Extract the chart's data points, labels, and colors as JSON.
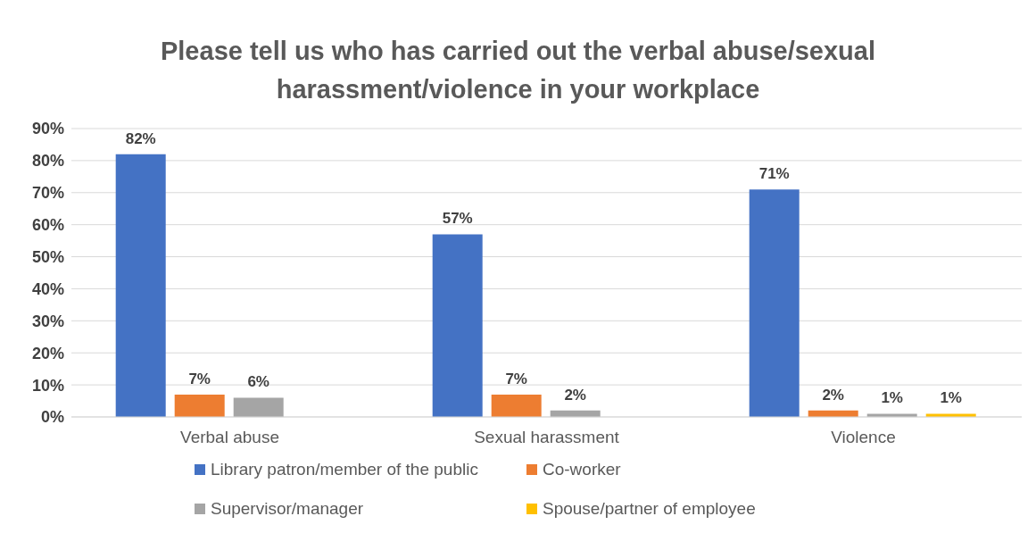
{
  "chart_data": {
    "type": "bar",
    "title": "Please tell us who has carried out the verbal abuse/sexual harassment/violence in your workplace",
    "categories": [
      "Verbal abuse",
      "Sexual harassment",
      "Violence"
    ],
    "series": [
      {
        "name": "Library patron/member of the public",
        "color": "#4472c4",
        "values": [
          82,
          57,
          71
        ],
        "value_labels": [
          "82%",
          "57%",
          "71%"
        ]
      },
      {
        "name": "Co-worker",
        "color": "#ed7d31",
        "values": [
          7,
          7,
          2
        ],
        "value_labels": [
          "7%",
          "7%",
          "2%"
        ]
      },
      {
        "name": "Supervisor/manager",
        "color": "#a5a5a5",
        "values": [
          6,
          2,
          1
        ],
        "value_labels": [
          "6%",
          "2%",
          "1%"
        ]
      },
      {
        "name": "Spouse/partner of employee",
        "color": "#ffc000",
        "values": [
          null,
          null,
          1
        ],
        "value_labels": [
          null,
          null,
          "1%"
        ]
      }
    ],
    "ylim": [
      0,
      90
    ],
    "yticks": [
      {
        "value": 0,
        "label": "0%"
      },
      {
        "value": 10,
        "label": "10%"
      },
      {
        "value": 20,
        "label": "20%"
      },
      {
        "value": 30,
        "label": "30%"
      },
      {
        "value": 40,
        "label": "40%"
      },
      {
        "value": 50,
        "label": "50%"
      },
      {
        "value": 60,
        "label": "60%"
      },
      {
        "value": 70,
        "label": "70%"
      },
      {
        "value": 80,
        "label": "80%"
      },
      {
        "value": 90,
        "label": "90%"
      }
    ],
    "grid": "y",
    "legend": "bottom"
  }
}
